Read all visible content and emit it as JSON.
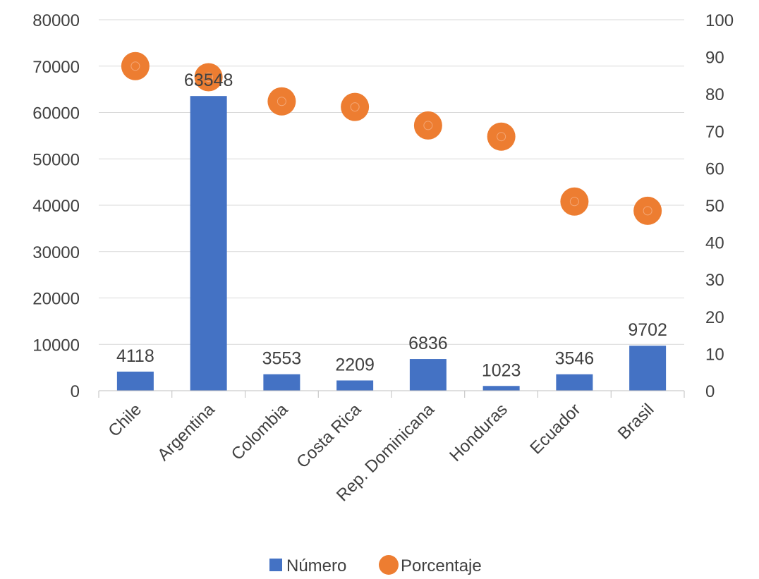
{
  "chart_data": {
    "type": "bar",
    "categories": [
      "Chile",
      "Argentina",
      "Colombia",
      "Costa Rica",
      "Rep. Dominicana",
      "Honduras",
      "Ecuador",
      "Brasil"
    ],
    "series": [
      {
        "name": "Número",
        "type": "bar",
        "axis": "left",
        "color": "#4472C4",
        "values": [
          4118,
          63548,
          3553,
          2209,
          6836,
          1023,
          3546,
          9702
        ],
        "labels": [
          "4118",
          "63548",
          "3553",
          "2209",
          "6836",
          "1023",
          "3546",
          "9702"
        ]
      },
      {
        "name": "Porcentaje",
        "type": "scatter",
        "axis": "right",
        "color": "#ED7D31",
        "values": [
          87.5,
          84.5,
          78,
          76.5,
          71.5,
          68.5,
          51,
          48.5
        ]
      }
    ],
    "y_left": {
      "min": 0,
      "max": 80000,
      "ticks": [
        "0",
        "10000",
        "20000",
        "30000",
        "40000",
        "50000",
        "60000",
        "70000",
        "80000"
      ]
    },
    "y_right": {
      "min": 0,
      "max": 100,
      "ticks": [
        "0",
        "10",
        "20",
        "30",
        "40",
        "50",
        "60",
        "70",
        "80",
        "90",
        "100"
      ]
    },
    "grid": true,
    "legend_position": "bottom"
  }
}
